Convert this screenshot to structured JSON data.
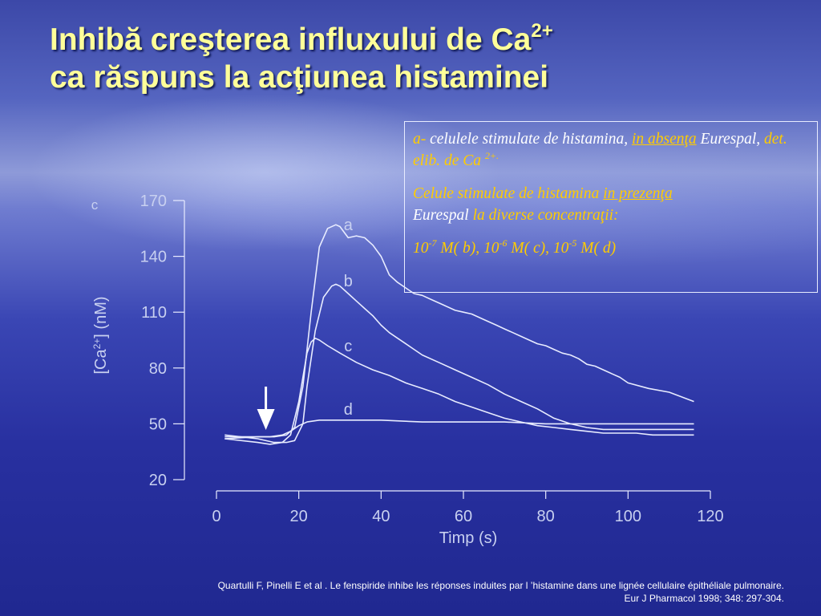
{
  "slide": {
    "title_line1": "Inhibă creşterea influxului de Ca",
    "title_line1_sup": "2+",
    "title_line2": "ca răspuns la acţiunea histaminei"
  },
  "legend": {
    "p1_a": "a- ",
    "p1_b": "celulele stimulate de histamina, ",
    "p1_c": "in absenţa",
    "p1_d": " Eurespal,",
    "p1_e": " det. elib. de Ca ",
    "p1_sup": "2+.",
    "p2_a": "Celule stimulate de histamina ",
    "p2_b": "in prezenţa",
    "p2_c": "Eurespal",
    "p2_d": " la diverse concentraţii:",
    "p3_base1": "10",
    "p3_exp1": "-7",
    "p3_t1": " M( b), ",
    "p3_base2": "10",
    "p3_exp2": "-6",
    "p3_t2": " M( c),  ",
    "p3_base3": "10",
    "p3_exp3": "-5",
    "p3_t3": " M( d)"
  },
  "citation": {
    "line1": "Quartulli F, Pinelli E et al . Le fenspiride inhibe les réponses induites par l ’histamine  dans une lignée cellulaire épithéliale pulmonaire.",
    "line2": "Eur J Pharmacol 1998; 348: 297-304."
  },
  "colors": {
    "title": "#ffff99",
    "legend_text": "#ffcc00",
    "chart_lines": "#e8ecff",
    "axis_text": "#c8d0f0"
  },
  "chart_data": {
    "type": "line",
    "panel_label": "c",
    "xlabel": "Timp (s)",
    "ylabel_prefix": "[Ca",
    "ylabel_sup": "2+",
    "ylabel_suffix": "] (nM)",
    "xlim": [
      0,
      120
    ],
    "ylim": [
      20,
      170
    ],
    "xticks": [
      0,
      20,
      40,
      60,
      80,
      100,
      120
    ],
    "yticks": [
      20,
      50,
      80,
      110,
      140,
      170
    ],
    "stimulus_arrow_x": 12,
    "series": [
      {
        "name": "a",
        "label_at": [
          32,
          157
        ],
        "x": [
          2,
          10,
          14,
          17,
          19,
          21,
          23,
          25,
          27,
          29,
          30,
          31,
          32,
          34,
          36,
          38,
          40,
          42,
          44,
          46,
          48,
          50,
          52,
          55,
          58,
          60,
          62,
          65,
          68,
          70,
          72,
          74,
          76,
          78,
          80,
          82,
          84,
          86,
          88,
          90,
          92,
          94,
          96,
          98,
          100,
          105,
          110,
          116
        ],
        "y": [
          42,
          43,
          43,
          44,
          48,
          70,
          110,
          145,
          155,
          157,
          156,
          153,
          150,
          151,
          150,
          146,
          140,
          130,
          126,
          123,
          120,
          119,
          117,
          114,
          111,
          110,
          109,
          106,
          103,
          101,
          99,
          97,
          95,
          93,
          92,
          90,
          88,
          87,
          85,
          82,
          81,
          79,
          77,
          75,
          72,
          69,
          67,
          62
        ]
      },
      {
        "name": "b",
        "label_at": [
          32,
          127
        ],
        "x": [
          2,
          10,
          14,
          17,
          19,
          21,
          22,
          24,
          26,
          28,
          29,
          30,
          32,
          34,
          36,
          38,
          40,
          42,
          44,
          46,
          48,
          50,
          54,
          58,
          62,
          66,
          70,
          74,
          78,
          82,
          86,
          90,
          94,
          98,
          102,
          106,
          110,
          116
        ],
        "y": [
          44,
          42,
          40,
          40,
          41,
          50,
          70,
          100,
          118,
          124,
          125,
          124,
          120,
          116,
          112,
          108,
          103,
          99,
          96,
          93,
          90,
          87,
          83,
          79,
          75,
          71,
          66,
          62,
          58,
          53,
          50,
          48,
          47,
          47,
          47,
          47,
          47,
          47
        ]
      },
      {
        "name": "c",
        "label_at": [
          32,
          92
        ],
        "x": [
          2,
          10,
          13,
          16,
          18,
          20,
          22,
          23,
          24,
          25,
          27,
          30,
          34,
          38,
          42,
          46,
          50,
          54,
          58,
          62,
          66,
          70,
          74,
          78,
          82,
          86,
          90,
          94,
          98,
          102,
          106,
          110,
          116
        ],
        "y": [
          42,
          40,
          39,
          40,
          44,
          62,
          88,
          94,
          96,
          95,
          92,
          88,
          83,
          79,
          76,
          72,
          69,
          66,
          62,
          59,
          56,
          53,
          51,
          49,
          48,
          47,
          46,
          45,
          45,
          45,
          44,
          44,
          44
        ]
      },
      {
        "name": "d",
        "label_at": [
          32,
          58
        ],
        "x": [
          2,
          8,
          13,
          16,
          18,
          20,
          22,
          25,
          30,
          40,
          50,
          60,
          70,
          80,
          90,
          100,
          110,
          116
        ],
        "y": [
          43,
          43,
          43,
          44,
          46,
          49,
          51,
          52,
          52,
          52,
          51,
          51,
          51,
          50,
          50,
          50,
          50,
          50
        ]
      }
    ]
  }
}
